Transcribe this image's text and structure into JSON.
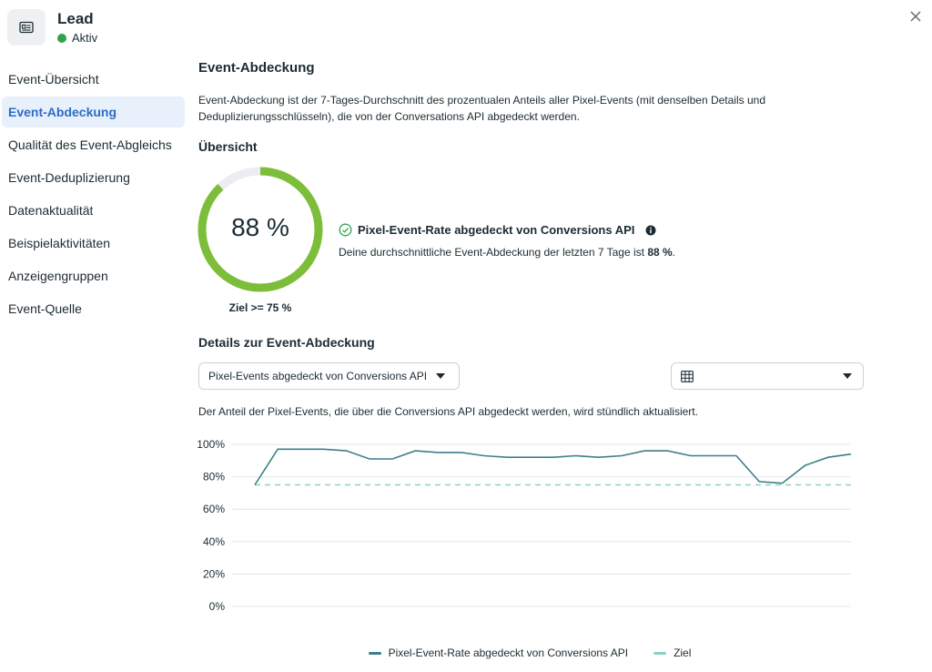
{
  "header": {
    "title": "Lead",
    "status": "Aktiv",
    "icon": "id-card-icon"
  },
  "sidebar": {
    "items": [
      {
        "label": "Event-Übersicht",
        "active": false
      },
      {
        "label": "Event-Abdeckung",
        "active": true
      },
      {
        "label": "Qualität des Event-Abgleichs",
        "active": false
      },
      {
        "label": "Event-Deduplizierung",
        "active": false
      },
      {
        "label": "Datenaktualität",
        "active": false
      },
      {
        "label": "Beispielaktivitäten",
        "active": false
      },
      {
        "label": "Anzeigengruppen",
        "active": false
      },
      {
        "label": "Event-Quelle",
        "active": false
      }
    ]
  },
  "main": {
    "title": "Event-Abdeckung",
    "description": "Event-Abdeckung ist der 7-Tages-Durchschnitt des prozentualen Anteils aller Pixel-Events (mit denselben Details und Deduplizierungsschlüsseln), die von der Conversations API abgedeckt werden.",
    "overview_title": "Übersicht",
    "gauge": {
      "value_label": "88 %",
      "value": 88,
      "goal_label": "Ziel >= 75 %"
    },
    "rate": {
      "heading": "Pixel-Event-Rate abgedeckt von Conversions API",
      "sub_prefix": "Deine durchschnittliche Event-Abdeckung der letzten 7 Tage ist ",
      "sub_value": "88 %",
      "sub_suffix": "."
    },
    "details_title": "Details zur Event-Abdeckung",
    "metric_dropdown": "Pixel-Events abgedeckt von Conversions API",
    "date_dropdown": "",
    "chart_note": "Der Anteil der Pixel-Events, die über die Conversions API abgedeckt werden, wird stündlich aktualisiert."
  },
  "colors": {
    "accent": "#2d6cc4",
    "gauge_fill": "#7cbd3a",
    "gauge_track": "#ebedf0",
    "line": "#3c7f8a",
    "goal_line": "#8fd0c4",
    "status": "#31a24c"
  },
  "chart_data": {
    "type": "line",
    "title": "",
    "xlabel": "",
    "ylabel": "",
    "ylim": [
      0,
      100
    ],
    "yticks": [
      "100%",
      "80%",
      "60%",
      "40%",
      "20%",
      "0%"
    ],
    "grid": true,
    "legend_position": "bottom",
    "series": [
      {
        "name": "Pixel-Event-Rate abgedeckt von Conversions API",
        "values": [
          75,
          97,
          97,
          97,
          96,
          91,
          91,
          96,
          95,
          95,
          93,
          92,
          92,
          92,
          93,
          92,
          93,
          96,
          96,
          93,
          93,
          93,
          77,
          76,
          87,
          92,
          94
        ]
      },
      {
        "name": "Ziel",
        "values": [
          75,
          75,
          75,
          75,
          75,
          75,
          75,
          75,
          75,
          75,
          75,
          75,
          75,
          75,
          75,
          75,
          75,
          75,
          75,
          75,
          75,
          75,
          75,
          75,
          75,
          75,
          75
        ]
      }
    ]
  }
}
